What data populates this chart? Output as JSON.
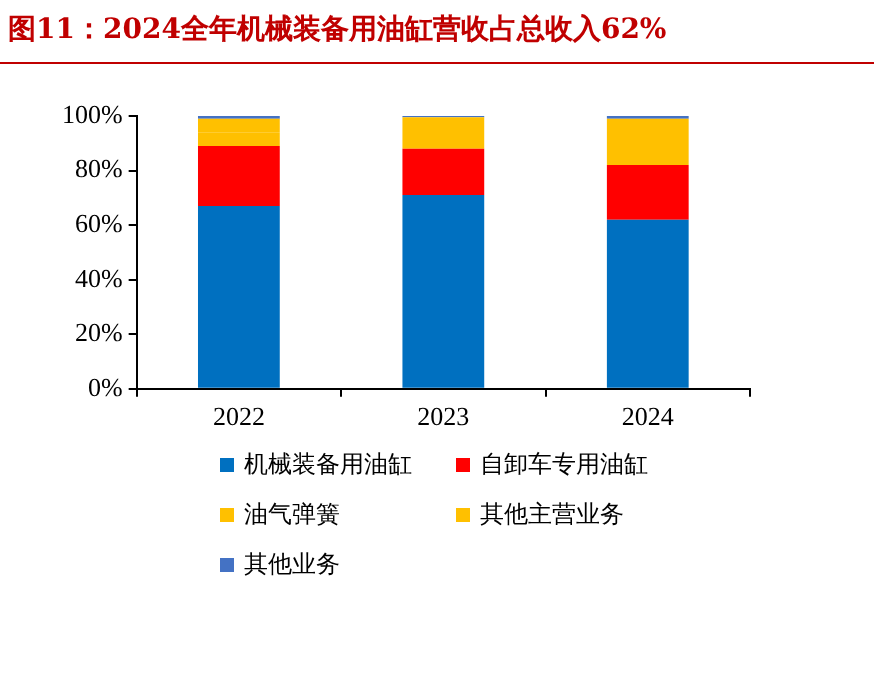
{
  "chart_data": {
    "type": "bar",
    "title": "图11：2024全年机械装备用油缸营收占总收入62%",
    "categories": [
      "2022",
      "2023",
      "2024"
    ],
    "stacked": true,
    "legend": "bottom",
    "grid": false,
    "ylim": [
      0,
      100
    ],
    "yticks": [
      {
        "value": 0,
        "label": "0%"
      },
      {
        "value": 20,
        "label": "20%"
      },
      {
        "value": 40,
        "label": "40%"
      },
      {
        "value": 60,
        "label": "60%"
      },
      {
        "value": 80,
        "label": "80%"
      },
      {
        "value": 100,
        "label": "100%"
      }
    ],
    "series": [
      {
        "name": "机械装备用油缸",
        "color": "#0070c0",
        "values": [
          67,
          71,
          62
        ]
      },
      {
        "name": "自卸车专用油缸",
        "color": "#ff0000",
        "values": [
          22,
          17,
          20
        ]
      },
      {
        "name": "油气弹簧",
        "color": "#ffc000",
        "values": [
          5,
          11.5,
          17
        ]
      },
      {
        "name": "其他主营业务",
        "color": "#ffc000",
        "values": [
          5,
          0,
          0
        ]
      },
      {
        "name": "其他业务",
        "color": "#4472c4",
        "values": [
          1,
          0.5,
          1
        ]
      }
    ]
  }
}
